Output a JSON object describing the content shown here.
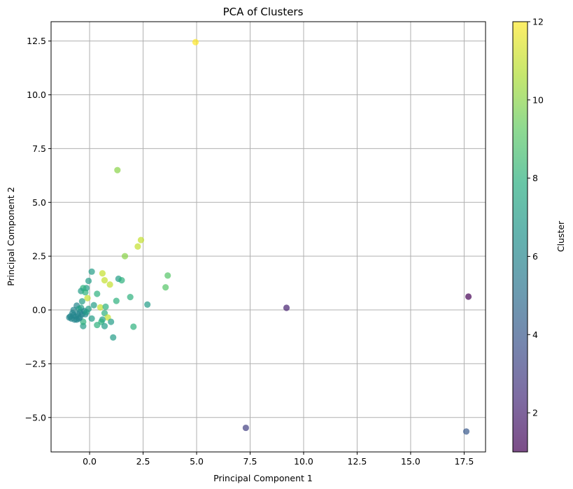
{
  "chart_data": {
    "type": "scatter",
    "title": "PCA of Clusters",
    "xlabel": "Principal Component 1",
    "ylabel": "Principal Component 2",
    "xlim": [
      -1.8,
      18.5
    ],
    "ylim": [
      -6.6,
      13.4
    ],
    "xticks": [
      0.0,
      2.5,
      5.0,
      7.5,
      10.0,
      12.5,
      15.0,
      17.5
    ],
    "xtick_labels": [
      "0.0",
      "2.5",
      "5.0",
      "7.5",
      "10.0",
      "12.5",
      "15.0",
      "17.5"
    ],
    "yticks": [
      -5.0,
      -2.5,
      0.0,
      2.5,
      5.0,
      7.5,
      10.0,
      12.5
    ],
    "ytick_labels": [
      "−5.0",
      "−2.5",
      "0.0",
      "2.5",
      "5.0",
      "7.5",
      "10.0",
      "12.5"
    ],
    "grid": true,
    "colormap": "viridis",
    "point_alpha": 0.7,
    "colorbar": {
      "label": "Cluster",
      "range": [
        1,
        12
      ],
      "ticks": [
        2,
        4,
        6,
        8,
        10,
        12
      ],
      "tick_labels": [
        "2",
        "4",
        "6",
        "8",
        "10",
        "12"
      ]
    },
    "points": [
      {
        "x": 4.95,
        "y": 12.45,
        "cluster": 12
      },
      {
        "x": 1.3,
        "y": 6.5,
        "cluster": 10
      },
      {
        "x": 2.4,
        "y": 3.25,
        "cluster": 11
      },
      {
        "x": 2.25,
        "y": 2.95,
        "cluster": 11
      },
      {
        "x": 1.65,
        "y": 2.5,
        "cluster": 10
      },
      {
        "x": 3.65,
        "y": 1.6,
        "cluster": 9
      },
      {
        "x": 3.55,
        "y": 1.05,
        "cluster": 9
      },
      {
        "x": 0.6,
        "y": 1.7,
        "cluster": 11
      },
      {
        "x": 0.7,
        "y": 1.38,
        "cluster": 11
      },
      {
        "x": 0.95,
        "y": 1.18,
        "cluster": 11
      },
      {
        "x": 1.35,
        "y": 1.45,
        "cluster": 7
      },
      {
        "x": 1.5,
        "y": 1.38,
        "cluster": 8
      },
      {
        "x": 0.1,
        "y": 1.78,
        "cluster": 7
      },
      {
        "x": -0.05,
        "y": 1.35,
        "cluster": 7
      },
      {
        "x": -0.15,
        "y": 1.02,
        "cluster": 7
      },
      {
        "x": -0.3,
        "y": 1.02,
        "cluster": 8
      },
      {
        "x": -0.4,
        "y": 0.88,
        "cluster": 7
      },
      {
        "x": -0.2,
        "y": 0.82,
        "cluster": 8
      },
      {
        "x": 0.35,
        "y": 0.75,
        "cluster": 8
      },
      {
        "x": -0.1,
        "y": 0.55,
        "cluster": 11
      },
      {
        "x": 1.25,
        "y": 0.42,
        "cluster": 8
      },
      {
        "x": -0.35,
        "y": 0.4,
        "cluster": 7
      },
      {
        "x": 1.9,
        "y": 0.6,
        "cluster": 8
      },
      {
        "x": 2.7,
        "y": 0.25,
        "cluster": 7
      },
      {
        "x": 0.2,
        "y": 0.22,
        "cluster": 7
      },
      {
        "x": 0.5,
        "y": 0.12,
        "cluster": 11
      },
      {
        "x": 0.75,
        "y": 0.15,
        "cluster": 8
      },
      {
        "x": 0.7,
        "y": -0.15,
        "cluster": 8
      },
      {
        "x": 0.85,
        "y": -0.35,
        "cluster": 11
      },
      {
        "x": 0.1,
        "y": -0.4,
        "cluster": 7
      },
      {
        "x": 0.6,
        "y": -0.45,
        "cluster": 7
      },
      {
        "x": 0.55,
        "y": -0.55,
        "cluster": 8
      },
      {
        "x": 1.0,
        "y": -0.55,
        "cluster": 7
      },
      {
        "x": 0.35,
        "y": -0.7,
        "cluster": 8
      },
      {
        "x": 0.7,
        "y": -0.75,
        "cluster": 7
      },
      {
        "x": 2.05,
        "y": -0.78,
        "cluster": 8
      },
      {
        "x": 1.1,
        "y": -1.28,
        "cluster": 7
      },
      {
        "x": -0.3,
        "y": -0.75,
        "cluster": 7
      },
      {
        "x": -0.3,
        "y": -0.55,
        "cluster": 8
      },
      {
        "x": -0.2,
        "y": -0.2,
        "cluster": 6
      },
      {
        "x": -0.45,
        "y": -0.35,
        "cluster": 6
      },
      {
        "x": -0.6,
        "y": 0.2,
        "cluster": 6
      },
      {
        "x": -0.5,
        "y": 0.05,
        "cluster": 7
      },
      {
        "x": -0.75,
        "y": 0.0,
        "cluster": 6
      },
      {
        "x": -0.8,
        "y": -0.15,
        "cluster": 6
      },
      {
        "x": -0.9,
        "y": -0.3,
        "cluster": 6
      },
      {
        "x": -0.85,
        "y": -0.4,
        "cluster": 6
      },
      {
        "x": -0.7,
        "y": -0.45,
        "cluster": 6
      },
      {
        "x": -0.65,
        "y": -0.3,
        "cluster": 6
      },
      {
        "x": -0.55,
        "y": -0.2,
        "cluster": 6
      },
      {
        "x": -0.6,
        "y": -0.45,
        "cluster": 6
      },
      {
        "x": -0.45,
        "y": -0.1,
        "cluster": 6
      },
      {
        "x": -0.4,
        "y": 0.1,
        "cluster": 7
      },
      {
        "x": -0.35,
        "y": -0.2,
        "cluster": 6
      },
      {
        "x": -0.25,
        "y": -0.05,
        "cluster": 6
      },
      {
        "x": -0.15,
        "y": -0.1,
        "cluster": 7
      },
      {
        "x": -0.05,
        "y": 0.05,
        "cluster": 7
      },
      {
        "x": -0.95,
        "y": -0.35,
        "cluster": 6
      },
      {
        "x": -0.75,
        "y": -0.25,
        "cluster": 6
      },
      {
        "x": -0.5,
        "y": -0.4,
        "cluster": 6
      },
      {
        "x": 9.2,
        "y": 0.1,
        "cluster": 2
      },
      {
        "x": 17.7,
        "y": 0.62,
        "cluster": 1
      },
      {
        "x": 7.3,
        "y": -5.48,
        "cluster": 3
      },
      {
        "x": 17.6,
        "y": -5.65,
        "cluster": 4
      }
    ]
  }
}
